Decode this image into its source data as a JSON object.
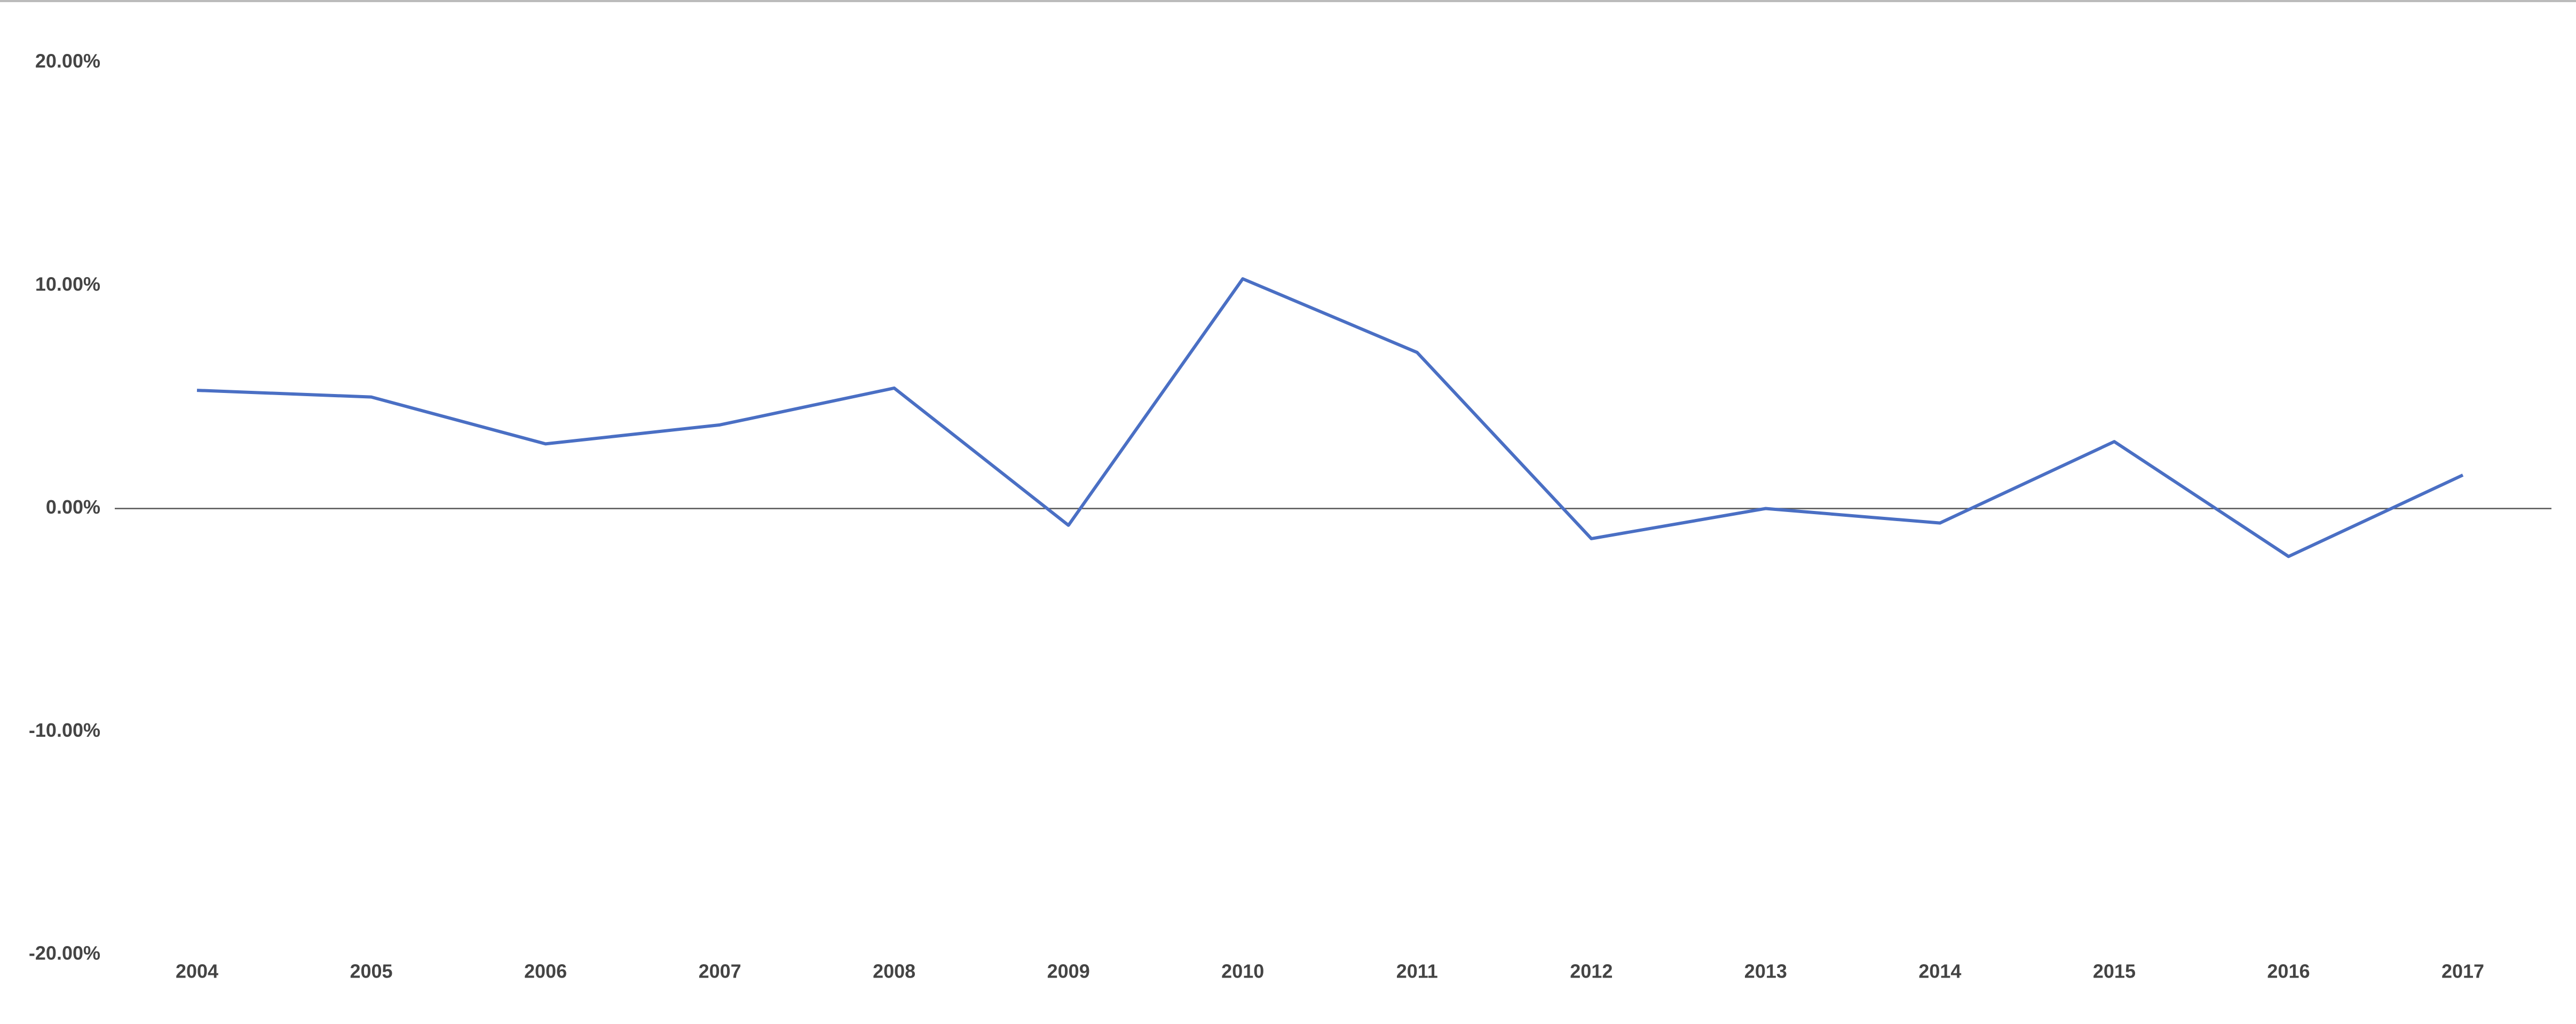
{
  "chart_data": {
    "type": "line",
    "categories": [
      "2004",
      "2005",
      "2006",
      "2007",
      "2008",
      "2009",
      "2010",
      "2011",
      "2012",
      "2013",
      "2014",
      "2015",
      "2016",
      "2017"
    ],
    "series": [
      {
        "color": "#4a6fc4",
        "values": [
          5.3,
          5.0,
          2.9,
          3.75,
          5.4,
          -0.75,
          10.3,
          7.0,
          -1.35,
          0.0,
          -0.65,
          3.0,
          -2.15,
          1.5
        ]
      }
    ],
    "ylim": [
      -20,
      20
    ],
    "yticks": [
      {
        "value": 20,
        "label": "20.00%"
      },
      {
        "value": 10,
        "label": "10.00%"
      },
      {
        "value": 0,
        "label": "0.00%"
      },
      {
        "value": -10,
        "label": "-10.00%"
      },
      {
        "value": -20,
        "label": "-20.00%"
      }
    ],
    "zero_line": true
  }
}
